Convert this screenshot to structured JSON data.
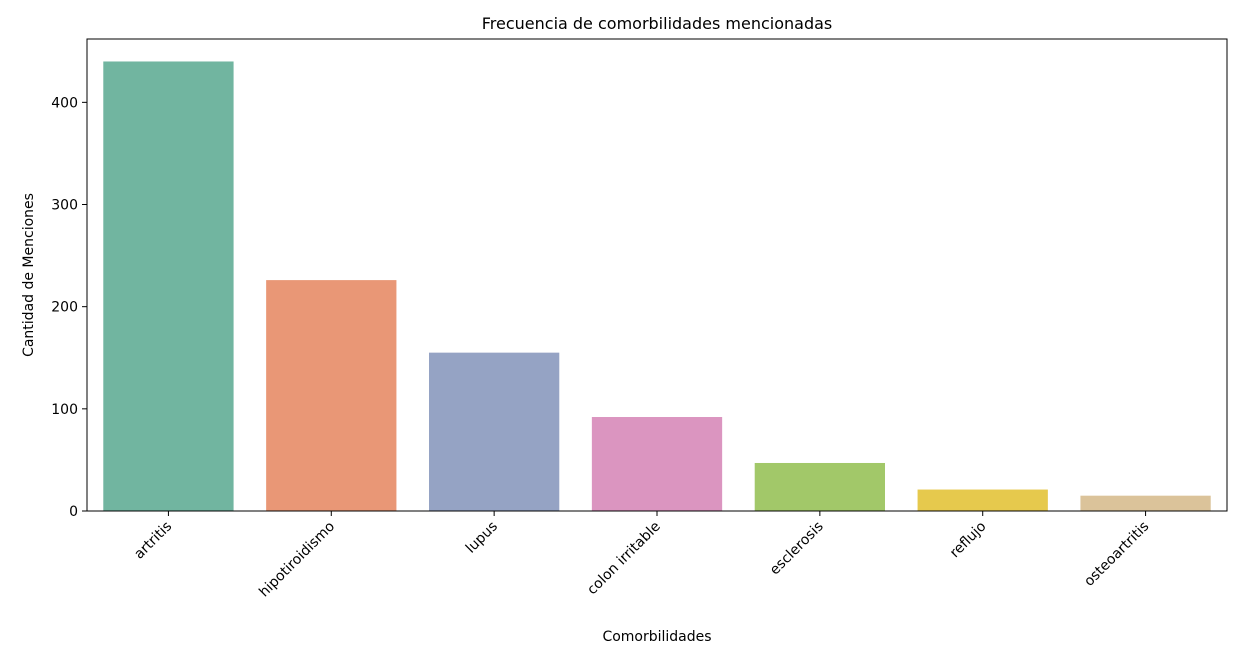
{
  "chart_data": {
    "type": "bar",
    "title": "Frecuencia de comorbilidades mencionadas",
    "xlabel": "Comorbilidades",
    "ylabel": "Cantidad de Menciones",
    "categories": [
      "artritis",
      "hipotiroidismo",
      "lupus",
      "colon irritable",
      "esclerosis",
      "reflujo",
      "osteoartritis"
    ],
    "values": [
      440,
      226,
      155,
      92,
      47,
      21,
      15
    ],
    "colors": [
      "#71b5a0",
      "#e99776",
      "#95a3c4",
      "#db95c0",
      "#a2c869",
      "#e6c94d",
      "#dbc39a"
    ],
    "ylim": [
      0,
      462
    ],
    "yticks": [
      0,
      100,
      200,
      300,
      400
    ],
    "grid": false,
    "legend": "none"
  }
}
